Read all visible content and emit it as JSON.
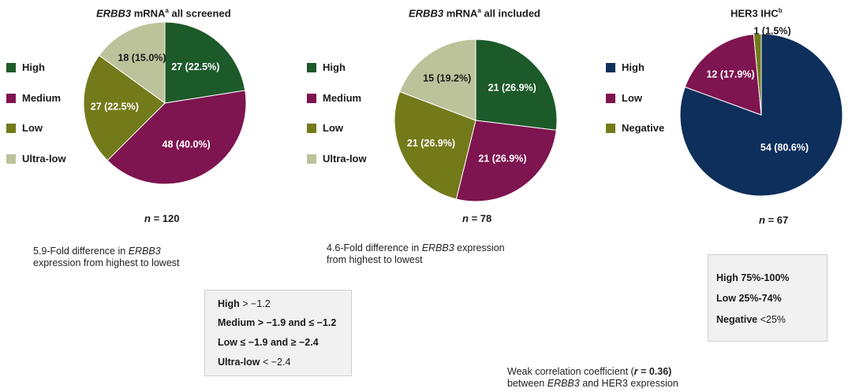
{
  "panels": [
    {
      "gene": "ERBB3",
      "title_rest": " mRNA",
      "title_sup": "a",
      "title_tail": " all screened",
      "legend": [
        "High",
        "Medium",
        "Low",
        "Ultra-low"
      ],
      "n_prefix": "n",
      "n_value": " = 120",
      "note": {
        "line1_pre": "5.9-Fold difference in ",
        "line1_gene": "ERBB3",
        "line2": "expression from highest to lowest"
      }
    },
    {
      "gene": "ERBB3",
      "title_rest": " mRNA",
      "title_sup": "a",
      "title_tail": " all included",
      "legend": [
        "High",
        "Medium",
        "Low",
        "Ultra-low"
      ],
      "n_prefix": "n",
      "n_value": " = 78",
      "note": {
        "line1_pre": "4.6-Fold difference in ",
        "line1_gene": "ERBB3",
        "line1_post": " expression",
        "line2": "from highest to lowest"
      }
    },
    {
      "title_main": "HER3 IHC",
      "title_sup": "b",
      "legend": [
        "High",
        "Low",
        "Negative"
      ],
      "n_prefix": "n",
      "n_value": " = 67"
    }
  ],
  "mrna_cutoffs": [
    {
      "label": "High",
      "value": " > −1.2"
    },
    {
      "label": "Medium",
      "value": " > −1.9 and ≤ −1.2"
    },
    {
      "label": "Low",
      "value": " ≤ −1.9 and ≥ −2.4"
    },
    {
      "label": "Ultra-low",
      "value": " < −2.4"
    }
  ],
  "ihc_cutoffs": [
    {
      "label": "High",
      "value": " 75%-100%"
    },
    {
      "label": "Low",
      "value": " 25%-74%"
    },
    {
      "label": "Negative",
      "value": " <25%"
    }
  ],
  "correlation": {
    "line1_pre": "Weak correlation coefficient (",
    "line1_r": "r",
    "line1_post": " = 0.36)",
    "line2_pre": "between ",
    "line2_gene": "ERBB3",
    "line2_post": " and HER3 expression"
  },
  "chart_data": [
    {
      "type": "pie",
      "title": "ERBB3 mRNAᵃ all screened",
      "total": 120,
      "slices": [
        {
          "label": "High",
          "value": 27,
          "percent": 22.5,
          "text": "27 (22.5%)",
          "color": "#1d5a2a"
        },
        {
          "label": "Medium",
          "value": 48,
          "percent": 40.0,
          "text": "48 (40.0%)",
          "color": "#7e1450"
        },
        {
          "label": "Low",
          "value": 27,
          "percent": 22.5,
          "text": "27 (22.5%)",
          "color": "#737a1a"
        },
        {
          "label": "Ultra-low",
          "value": 18,
          "percent": 15.0,
          "text": "18 (15.0%)",
          "color": "#bcc29a"
        }
      ]
    },
    {
      "type": "pie",
      "title": "ERBB3 mRNAᵃ all included",
      "total": 78,
      "slices": [
        {
          "label": "High",
          "value": 21,
          "percent": 26.9,
          "text": "21 (26.9%)",
          "color": "#1d5a2a"
        },
        {
          "label": "Medium",
          "value": 21,
          "percent": 26.9,
          "text": "21 (26.9%)",
          "color": "#7e1450"
        },
        {
          "label": "Low",
          "value": 21,
          "percent": 26.9,
          "text": "21 (26.9%)",
          "color": "#737a1a"
        },
        {
          "label": "Ultra-low",
          "value": 15,
          "percent": 19.2,
          "text": "15 (19.2%)",
          "color": "#bcc29a"
        }
      ]
    },
    {
      "type": "pie",
      "title": "HER3 IHCᵇ",
      "total": 67,
      "slices": [
        {
          "label": "High",
          "value": 54,
          "percent": 80.6,
          "text": "54 (80.6%)",
          "color": "#0e2f5c"
        },
        {
          "label": "Low",
          "value": 12,
          "percent": 17.9,
          "text": "12 (17.9%)",
          "color": "#7e1450"
        },
        {
          "label": "Negative",
          "value": 1,
          "percent": 1.5,
          "text": "1 (1.5%)",
          "color": "#737a1a"
        }
      ]
    }
  ]
}
